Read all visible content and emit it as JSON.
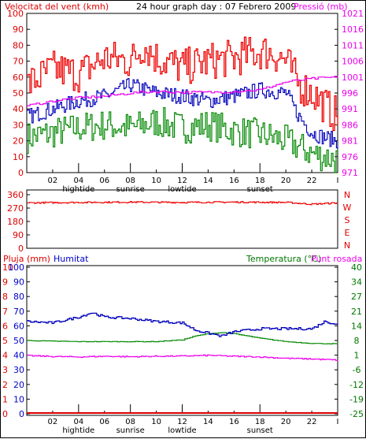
{
  "header": {
    "left_title": "Velocitat del vent (kmh)",
    "center_title": "24 hour graph day : 07 Febrero 2009",
    "right_title": "Pressió (mb)"
  },
  "colors": {
    "axis_text": "#dd0000",
    "wind_speed": "#ee0000",
    "wind_gust": "#ee0000",
    "wind_avg": "#008800",
    "pressure": "#ee00ee",
    "humidity": "#0000bb",
    "temperature": "#008800",
    "dewpoint": "#ee00ee",
    "rain": "#dd0000",
    "blue_text": "#0000cc",
    "green_text": "#007700",
    "grid": "#888888"
  },
  "chart_data": [
    {
      "type": "line",
      "title": "24 hour graph day : 07 Febrero 2009",
      "ylabel_left": "Velocitat del vent (kmh)",
      "ylabel_right": "Pressió (mb)",
      "x_ticks": [
        "02",
        "04",
        "06",
        "08",
        "10",
        "12",
        "14",
        "16",
        "18",
        "20",
        "22",
        "I"
      ],
      "x_events": [
        {
          "x": "04",
          "label": "hightide"
        },
        {
          "x": "08",
          "label": "sunrise"
        },
        {
          "x": "12",
          "label": "lowtide"
        },
        {
          "x": "18",
          "label": "sunset"
        }
      ],
      "ylim_left": [
        0,
        100
      ],
      "yticks_left": [
        "100",
        "90",
        "80",
        "70",
        "60",
        "50",
        "40",
        "30",
        "20",
        "10",
        "0"
      ],
      "ylim_right": [
        971,
        1021
      ],
      "yticks_right": [
        "1021",
        "1016",
        "1011",
        "1006",
        "1001",
        "996",
        "991",
        "986",
        "981",
        "976",
        "971"
      ],
      "series": [
        {
          "name": "Velocitat del vent (kmh)",
          "axis": "left",
          "x": [
            0,
            2,
            4,
            6,
            8,
            9,
            10,
            12,
            14,
            16,
            18,
            19,
            20,
            21,
            22,
            23,
            24
          ],
          "values": [
            55,
            65,
            62,
            72,
            70,
            80,
            72,
            66,
            70,
            72,
            76,
            75,
            70,
            55,
            50,
            42,
            35
          ]
        },
        {
          "name": "",
          "axis": "left",
          "x": [
            0,
            2,
            4,
            6,
            8,
            10,
            12,
            14,
            16,
            18,
            20,
            21,
            22,
            23,
            24
          ],
          "values": [
            35,
            40,
            45,
            48,
            55,
            50,
            48,
            45,
            48,
            52,
            50,
            35,
            25,
            22,
            20
          ]
        },
        {
          "name": "",
          "axis": "left",
          "x": [
            0,
            2,
            4,
            6,
            8,
            10,
            12,
            14,
            16,
            18,
            20,
            22,
            23,
            24
          ],
          "values": [
            22,
            25,
            28,
            30,
            28,
            32,
            28,
            30,
            26,
            24,
            20,
            12,
            10,
            8
          ]
        },
        {
          "name": "Pressió (mb)",
          "axis": "right",
          "x": [
            0,
            2,
            4,
            6,
            8,
            10,
            12,
            14,
            16,
            18,
            19,
            20,
            22,
            24
          ],
          "values": [
            992,
            993.5,
            994.5,
            995,
            996,
            996.5,
            996.2,
            996.2,
            996.5,
            997,
            998.3,
            999.5,
            1000.5,
            1001
          ]
        }
      ]
    },
    {
      "type": "line",
      "yticks_left": [
        "360",
        "270",
        "180",
        "90",
        "0"
      ],
      "ylim_left": [
        0,
        360
      ],
      "yticks_right": [
        "N",
        "W",
        "S",
        "E",
        "N"
      ],
      "series": [
        {
          "name": "",
          "x": [
            0,
            4,
            8,
            12,
            16,
            20,
            22,
            24
          ],
          "values": [
            305,
            308,
            310,
            308,
            310,
            308,
            296,
            305
          ]
        }
      ]
    },
    {
      "type": "line",
      "labels": [
        "Pluja (mm)",
        "Humitat",
        "Temperatura (°C)",
        "Punt rosada"
      ],
      "x_ticks": [
        "02",
        "04",
        "06",
        "08",
        "10",
        "12",
        "14",
        "16",
        "18",
        "20",
        "22",
        "I"
      ],
      "x_events": [
        {
          "x": "04",
          "label": "hightide"
        },
        {
          "x": "08",
          "label": "sunrise"
        },
        {
          "x": "12",
          "label": "lowtide"
        },
        {
          "x": "18",
          "label": "sunset"
        }
      ],
      "yticks_rain": [
        "10",
        "9",
        "8",
        "7",
        "6",
        "5",
        "4",
        "3",
        "2",
        "1",
        "0"
      ],
      "yticks_humidity": [
        "100",
        "90",
        "80",
        "70",
        "60",
        "50",
        "40",
        "30",
        "20",
        "10",
        "0"
      ],
      "ylim_humidity": [
        0,
        100
      ],
      "yticks_temperature": [
        "40",
        "34",
        "27",
        "21",
        "14",
        "8",
        "1",
        "-6",
        "-12",
        "-19",
        "-25"
      ],
      "ylim_temperature": [
        -25,
        40
      ],
      "series": [
        {
          "name": "Humitat",
          "axis": "humidity",
          "x": [
            0,
            2,
            4,
            5,
            6,
            8,
            10,
            12,
            13,
            14,
            15,
            16,
            18,
            20,
            22,
            23,
            24
          ],
          "values": [
            63,
            62,
            66,
            69,
            66,
            65,
            63,
            62,
            57,
            55,
            53,
            56,
            58,
            58,
            58,
            63,
            61
          ]
        },
        {
          "name": "Temperatura (°C)",
          "axis": "temperature",
          "x": [
            0,
            2,
            4,
            6,
            8,
            10,
            12,
            13,
            14,
            15,
            16,
            18,
            20,
            22,
            24
          ],
          "values": [
            7.5,
            7.2,
            7,
            7,
            7,
            7,
            7.8,
            9.5,
            10.5,
            11,
            10.5,
            8.5,
            7,
            6.2,
            6
          ]
        },
        {
          "name": "Punt rosada",
          "axis": "temperature",
          "x": [
            0,
            2,
            4,
            6,
            8,
            10,
            12,
            14,
            16,
            18,
            20,
            22,
            24
          ],
          "values": [
            0.8,
            0.4,
            0.2,
            0.5,
            0.3,
            0.5,
            0.6,
            0.9,
            0.5,
            0.2,
            -0.4,
            -0.7,
            -1.2
          ]
        },
        {
          "name": "Pluja (mm)",
          "axis": "rain",
          "x": [
            0,
            24
          ],
          "values": [
            0,
            0
          ]
        }
      ]
    }
  ]
}
